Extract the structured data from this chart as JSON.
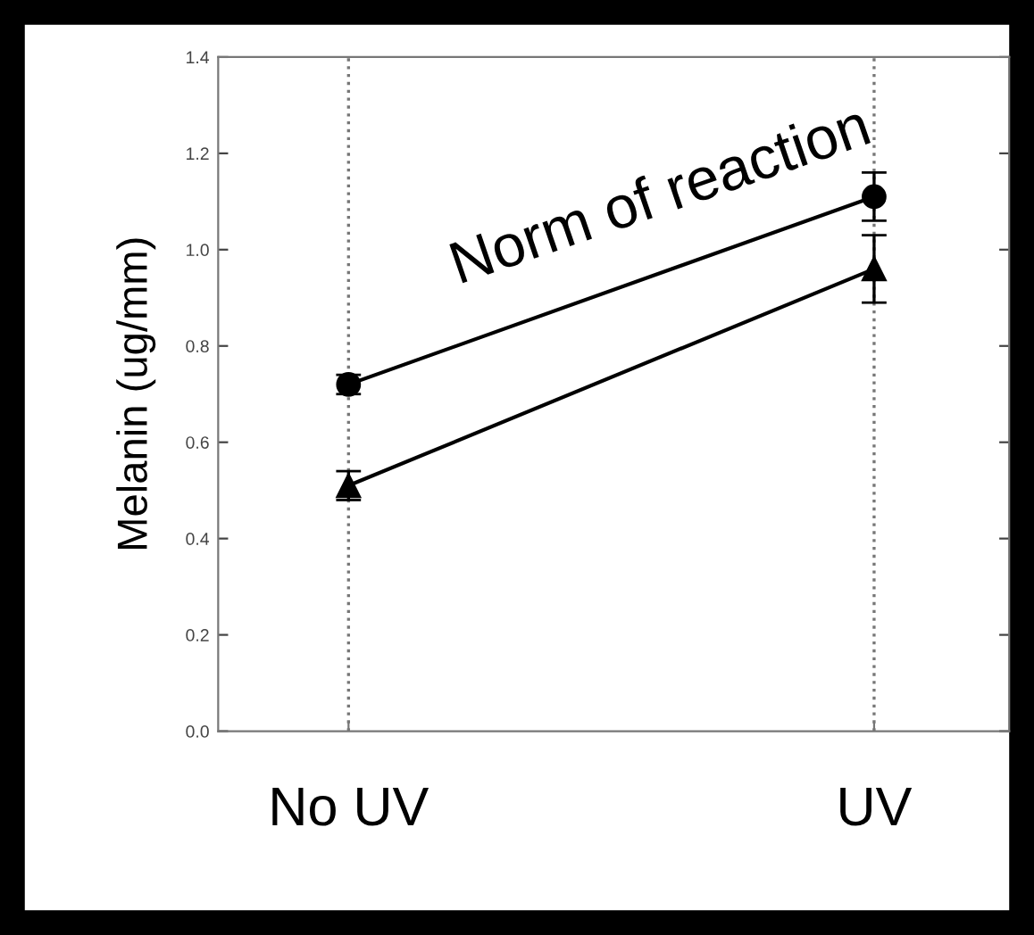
{
  "chart_data": {
    "type": "line",
    "ylabel": "Melanin (ug/mm)",
    "categories": [
      "No UV",
      "UV"
    ],
    "series": [
      {
        "color": "#000000",
        "marker": "circle",
        "values": [
          0.72,
          1.11
        ],
        "errors": [
          0.02,
          0.05
        ]
      },
      {
        "color": "#000000",
        "marker": "triangle",
        "values": [
          0.51,
          0.96
        ],
        "errors": [
          0.03,
          0.07
        ]
      }
    ],
    "ylim": [
      0,
      1.4
    ],
    "yticks": [
      {
        "value": 0,
        "label": "0.0"
      },
      0.2,
      0.4,
      0.6,
      0.8,
      {
        "value": 1,
        "label": "1.0"
      },
      1.2,
      1.4
    ],
    "grid": "x",
    "line_style": "solid",
    "annotations": [
      "Norm of reaction"
    ]
  }
}
